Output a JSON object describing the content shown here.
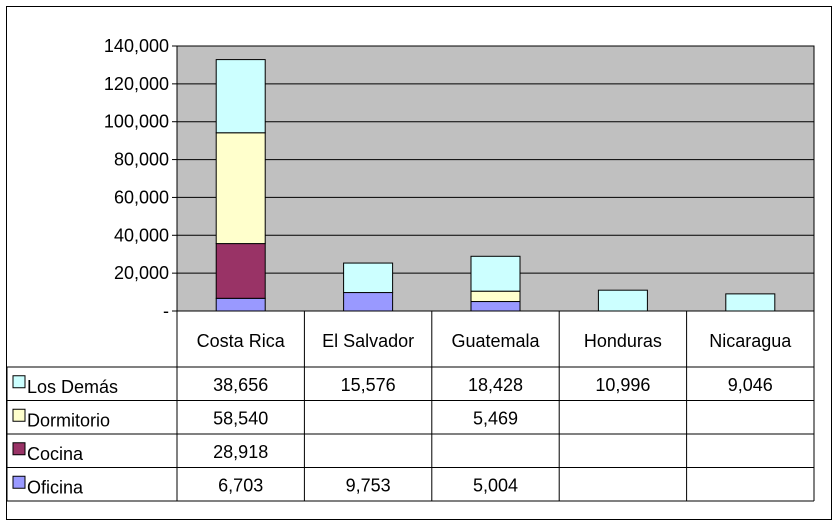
{
  "chart_data": {
    "type": "bar",
    "stacked": true,
    "categories": [
      "Costa Rica",
      "El Salvador",
      "Guatemala",
      "Honduras",
      "Nicaragua"
    ],
    "series": [
      {
        "name": "Oficina",
        "color": "#9999FF",
        "values": [
          6703,
          9753,
          5004,
          null,
          null
        ]
      },
      {
        "name": "Cocina",
        "color": "#993366",
        "values": [
          28918,
          null,
          null,
          null,
          null
        ]
      },
      {
        "name": "Dormitorio",
        "color": "#FFFFCC",
        "values": [
          58540,
          null,
          5469,
          null,
          null
        ]
      },
      {
        "name": "Los Demás",
        "color": "#CCFFFF",
        "values": [
          38656,
          15576,
          18428,
          10996,
          9046
        ]
      }
    ],
    "ylim": [
      0,
      140000
    ],
    "yticks": [
      {
        "value": 0,
        "label": "-"
      },
      {
        "value": 20000,
        "label": "20,000"
      },
      {
        "value": 40000,
        "label": "40,000"
      },
      {
        "value": 60000,
        "label": "60,000"
      },
      {
        "value": 80000,
        "label": "80,000"
      },
      {
        "value": 100000,
        "label": "100,000"
      },
      {
        "value": 120000,
        "label": "120,000"
      },
      {
        "value": 140000,
        "label": "140,000"
      }
    ],
    "grid": true,
    "plot_background": "#C0C0C0",
    "data_table": {
      "row_order": [
        "Los Demás",
        "Dormitorio",
        "Cocina",
        "Oficina"
      ],
      "rows": [
        {
          "name": "Los Demás",
          "cells": [
            "38,656",
            "15,576",
            "18,428",
            "10,996",
            "9,046"
          ]
        },
        {
          "name": "Dormitorio",
          "cells": [
            "58,540",
            "",
            "5,469",
            "",
            ""
          ]
        },
        {
          "name": "Cocina",
          "cells": [
            "28,918",
            "",
            "",
            "",
            ""
          ]
        },
        {
          "name": "Oficina",
          "cells": [
            "6,703",
            "9,753",
            "5,004",
            "",
            ""
          ]
        }
      ]
    }
  }
}
